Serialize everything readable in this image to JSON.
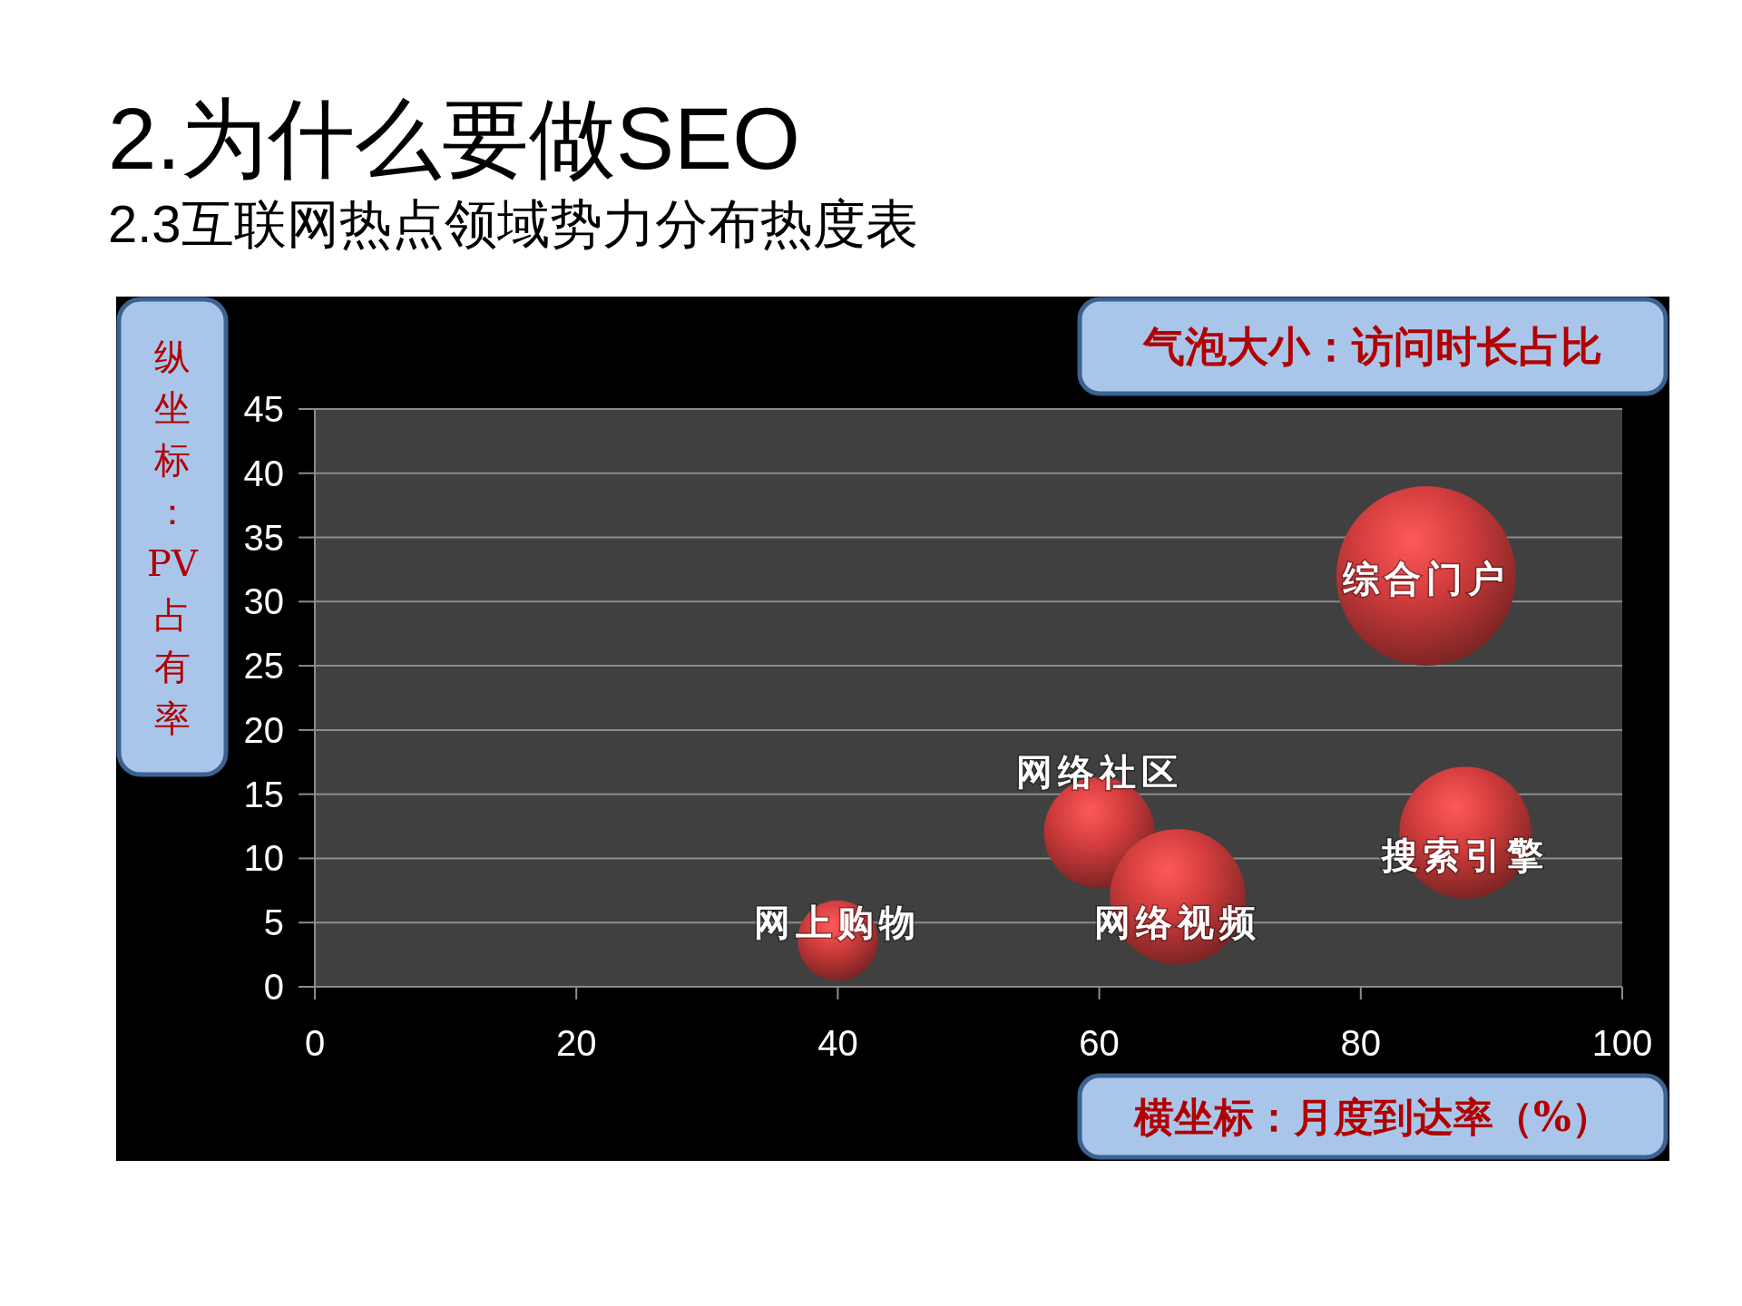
{
  "chart_data": {
    "type": "bubble",
    "title": "2.为什么要做SEO",
    "subtitle": "2.3互联网热点领域势力分布热度表",
    "xlabel": "横坐标：月度到达率（%）",
    "ylabel": "纵坐标：PV占有率",
    "annotations": [
      "气泡大小：访问时长占比"
    ],
    "xlim": [
      0,
      100
    ],
    "xticks": [
      0,
      20,
      40,
      60,
      80,
      100
    ],
    "ylim": [
      0,
      45
    ],
    "yticks": [
      0,
      5,
      10,
      15,
      20,
      25,
      30,
      35,
      40,
      45
    ],
    "grid": "y",
    "series": [
      {
        "name": "网上购物",
        "color": "#d03c3c",
        "x": [
          40
        ],
        "values": [
          3.6
        ],
        "sizes": [
          0.2
        ]
      },
      {
        "name": "网络社区",
        "color": "#d03c3c",
        "x": [
          60
        ],
        "values": [
          12
        ],
        "sizes": [
          0.38
        ]
      },
      {
        "name": "网络视频",
        "color": "#d03c3c",
        "x": [
          66
        ],
        "values": [
          7
        ],
        "sizes": [
          0.57
        ]
      },
      {
        "name": "综合门户",
        "color": "#d03c3c",
        "x": [
          85
        ],
        "values": [
          32
        ],
        "sizes": [
          1
        ]
      },
      {
        "name": "搜索引擎",
        "color": "#d03c3c",
        "x": [
          88
        ],
        "values": [
          12
        ],
        "sizes": [
          0.54
        ]
      }
    ]
  }
}
